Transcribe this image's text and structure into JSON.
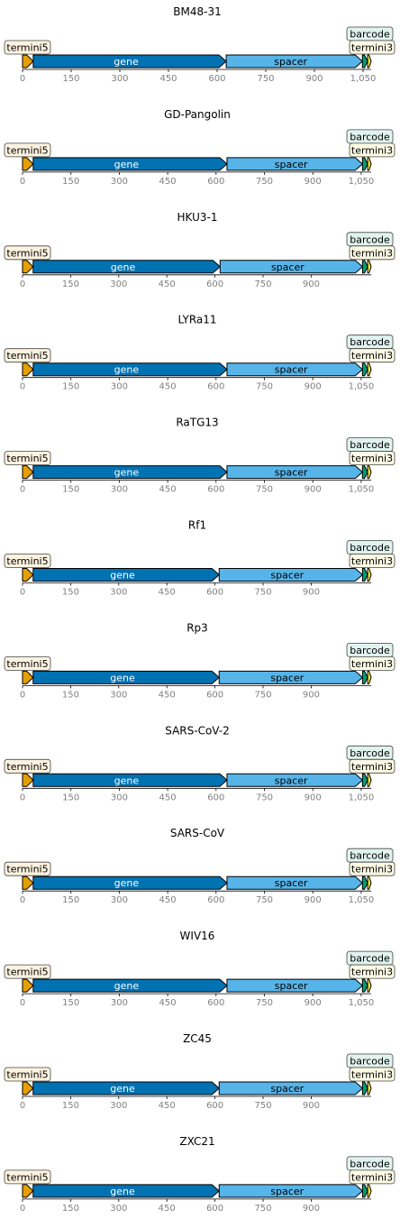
{
  "colors": {
    "termini5": "#E69F00",
    "gene": "#0072B2",
    "spacer": "#56B4E9",
    "barcode": "#009E73",
    "termini3": "#F0E442",
    "tick_text": "#808080",
    "axis": "#000000"
  },
  "chart_data": [
    {
      "type": "diagram",
      "title": "BM48-31",
      "seq_length": 1075,
      "ticks": [
        0,
        150,
        300,
        450,
        600,
        750,
        900,
        1050
      ],
      "tick_labels": [
        "0",
        "150",
        "300",
        "450",
        "600",
        "750",
        "900",
        "1,050"
      ],
      "features": [
        {
          "name": "termini5",
          "start": 0,
          "end": 33
        },
        {
          "name": "gene",
          "start": 33,
          "end": 628
        },
        {
          "name": "spacer",
          "start": 628,
          "end": 1048
        },
        {
          "name": "barcode",
          "start": 1048,
          "end": 1064
        },
        {
          "name": "termini3",
          "start": 1064,
          "end": 1075
        }
      ]
    },
    {
      "type": "diagram",
      "title": "GD-Pangolin",
      "seq_length": 1081,
      "ticks": [
        0,
        150,
        300,
        450,
        600,
        750,
        900,
        1050
      ],
      "tick_labels": [
        "0",
        "150",
        "300",
        "450",
        "600",
        "750",
        "900",
        "1,050"
      ],
      "features": [
        {
          "name": "termini5",
          "start": 0,
          "end": 33
        },
        {
          "name": "gene",
          "start": 33,
          "end": 634
        },
        {
          "name": "spacer",
          "start": 634,
          "end": 1054
        },
        {
          "name": "barcode",
          "start": 1054,
          "end": 1070
        },
        {
          "name": "termini3",
          "start": 1070,
          "end": 1081
        }
      ]
    },
    {
      "type": "diagram",
      "title": "HKU3-1",
      "seq_length": 1087,
      "ticks": [
        0,
        150,
        300,
        450,
        600,
        750,
        900
      ],
      "tick_labels": [
        "0",
        "150",
        "300",
        "450",
        "600",
        "750",
        "900"
      ],
      "features": [
        {
          "name": "termini5",
          "start": 0,
          "end": 33
        },
        {
          "name": "gene",
          "start": 33,
          "end": 616
        },
        {
          "name": "spacer",
          "start": 616,
          "end": 1060
        },
        {
          "name": "barcode",
          "start": 1060,
          "end": 1076
        },
        {
          "name": "termini3",
          "start": 1076,
          "end": 1087
        }
      ]
    },
    {
      "type": "diagram",
      "title": "LYRa11",
      "seq_length": 1081,
      "ticks": [
        0,
        150,
        300,
        450,
        600,
        750,
        900,
        1050
      ],
      "tick_labels": [
        "0",
        "150",
        "300",
        "450",
        "600",
        "750",
        "900",
        "1,050"
      ],
      "features": [
        {
          "name": "termini5",
          "start": 0,
          "end": 33
        },
        {
          "name": "gene",
          "start": 33,
          "end": 634
        },
        {
          "name": "spacer",
          "start": 634,
          "end": 1054
        },
        {
          "name": "barcode",
          "start": 1054,
          "end": 1070
        },
        {
          "name": "termini3",
          "start": 1070,
          "end": 1081
        }
      ]
    },
    {
      "type": "diagram",
      "title": "RaTG13",
      "seq_length": 1081,
      "ticks": [
        0,
        150,
        300,
        450,
        600,
        750,
        900,
        1050
      ],
      "tick_labels": [
        "0",
        "150",
        "300",
        "450",
        "600",
        "750",
        "900",
        "1,050"
      ],
      "features": [
        {
          "name": "termini5",
          "start": 0,
          "end": 33
        },
        {
          "name": "gene",
          "start": 33,
          "end": 634
        },
        {
          "name": "spacer",
          "start": 634,
          "end": 1054
        },
        {
          "name": "barcode",
          "start": 1054,
          "end": 1070
        },
        {
          "name": "termini3",
          "start": 1070,
          "end": 1081
        }
      ]
    },
    {
      "type": "diagram",
      "title": "Rf1",
      "seq_length": 1087,
      "ticks": [
        0,
        150,
        300,
        450,
        600,
        750,
        900
      ],
      "tick_labels": [
        "0",
        "150",
        "300",
        "450",
        "600",
        "750",
        "900"
      ],
      "features": [
        {
          "name": "termini5",
          "start": 0,
          "end": 33
        },
        {
          "name": "gene",
          "start": 33,
          "end": 613
        },
        {
          "name": "spacer",
          "start": 613,
          "end": 1060
        },
        {
          "name": "barcode",
          "start": 1060,
          "end": 1076
        },
        {
          "name": "termini3",
          "start": 1076,
          "end": 1087
        }
      ]
    },
    {
      "type": "diagram",
      "title": "Rp3",
      "seq_length": 1087,
      "ticks": [
        0,
        150,
        300,
        450,
        600,
        750,
        900
      ],
      "tick_labels": [
        "0",
        "150",
        "300",
        "450",
        "600",
        "750",
        "900"
      ],
      "features": [
        {
          "name": "termini5",
          "start": 0,
          "end": 33
        },
        {
          "name": "gene",
          "start": 33,
          "end": 613
        },
        {
          "name": "spacer",
          "start": 613,
          "end": 1060
        },
        {
          "name": "barcode",
          "start": 1060,
          "end": 1076
        },
        {
          "name": "termini3",
          "start": 1076,
          "end": 1087
        }
      ]
    },
    {
      "type": "diagram",
      "title": "SARS-CoV-2",
      "seq_length": 1081,
      "ticks": [
        0,
        150,
        300,
        450,
        600,
        750,
        900,
        1050
      ],
      "tick_labels": [
        "0",
        "150",
        "300",
        "450",
        "600",
        "750",
        "900",
        "1,050"
      ],
      "features": [
        {
          "name": "termini5",
          "start": 0,
          "end": 33
        },
        {
          "name": "gene",
          "start": 33,
          "end": 634
        },
        {
          "name": "spacer",
          "start": 634,
          "end": 1054
        },
        {
          "name": "barcode",
          "start": 1054,
          "end": 1070
        },
        {
          "name": "termini3",
          "start": 1070,
          "end": 1081
        }
      ]
    },
    {
      "type": "diagram",
      "title": "SARS-CoV",
      "seq_length": 1081,
      "ticks": [
        0,
        150,
        300,
        450,
        600,
        750,
        900,
        1050
      ],
      "tick_labels": [
        "0",
        "150",
        "300",
        "450",
        "600",
        "750",
        "900",
        "1,050"
      ],
      "features": [
        {
          "name": "termini5",
          "start": 0,
          "end": 33
        },
        {
          "name": "gene",
          "start": 33,
          "end": 634
        },
        {
          "name": "spacer",
          "start": 634,
          "end": 1054
        },
        {
          "name": "barcode",
          "start": 1054,
          "end": 1070
        },
        {
          "name": "termini3",
          "start": 1070,
          "end": 1081
        }
      ]
    },
    {
      "type": "diagram",
      "title": "WIV16",
      "seq_length": 1081,
      "ticks": [
        0,
        150,
        300,
        450,
        600,
        750,
        900,
        1050
      ],
      "tick_labels": [
        "0",
        "150",
        "300",
        "450",
        "600",
        "750",
        "900",
        "1,050"
      ],
      "features": [
        {
          "name": "termini5",
          "start": 0,
          "end": 33
        },
        {
          "name": "gene",
          "start": 33,
          "end": 634
        },
        {
          "name": "spacer",
          "start": 634,
          "end": 1054
        },
        {
          "name": "barcode",
          "start": 1054,
          "end": 1070
        },
        {
          "name": "termini3",
          "start": 1070,
          "end": 1081
        }
      ]
    },
    {
      "type": "diagram",
      "title": "ZC45",
      "seq_length": 1087,
      "ticks": [
        0,
        150,
        300,
        450,
        600,
        750,
        900
      ],
      "tick_labels": [
        "0",
        "150",
        "300",
        "450",
        "600",
        "750",
        "900"
      ],
      "features": [
        {
          "name": "termini5",
          "start": 0,
          "end": 33
        },
        {
          "name": "gene",
          "start": 33,
          "end": 613
        },
        {
          "name": "spacer",
          "start": 613,
          "end": 1060
        },
        {
          "name": "barcode",
          "start": 1060,
          "end": 1076
        },
        {
          "name": "termini3",
          "start": 1076,
          "end": 1087
        }
      ]
    },
    {
      "type": "diagram",
      "title": "ZXC21",
      "seq_length": 1087,
      "ticks": [
        0,
        150,
        300,
        450,
        600,
        750,
        900
      ],
      "tick_labels": [
        "0",
        "150",
        "300",
        "450",
        "600",
        "750",
        "900"
      ],
      "features": [
        {
          "name": "termini5",
          "start": 0,
          "end": 33
        },
        {
          "name": "gene",
          "start": 33,
          "end": 613
        },
        {
          "name": "spacer",
          "start": 613,
          "end": 1060
        },
        {
          "name": "barcode",
          "start": 1060,
          "end": 1076
        },
        {
          "name": "termini3",
          "start": 1076,
          "end": 1087
        }
      ]
    }
  ]
}
